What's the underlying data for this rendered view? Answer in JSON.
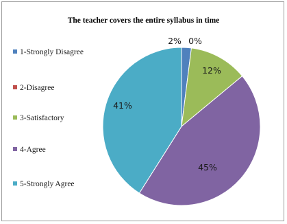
{
  "chart_data": {
    "type": "pie",
    "title": "The teacher covers the entire syllabus  in time",
    "legend_position": "left",
    "categories": [
      "1-Strongly Disagree",
      "2-Disagree",
      "3-Satisfactory",
      "4-Agree",
      "5-Strongly Agree"
    ],
    "values": [
      2,
      0,
      12,
      45,
      41
    ],
    "data_labels": [
      "2%",
      "0%",
      "12%",
      "45%",
      "41%"
    ],
    "colors": [
      "#4f81bd",
      "#c0504d",
      "#9bbb59",
      "#8064a2",
      "#4bacc6"
    ]
  },
  "legend": [
    {
      "label": "1-Strongly Disagree",
      "color": "#4f81bd"
    },
    {
      "label": "2-Disagree",
      "color": "#c0504d"
    },
    {
      "label": "3-Satisfactory",
      "color": "#9bbb59"
    },
    {
      "label": "4-Agree",
      "color": "#8064a2"
    },
    {
      "label": "5-Strongly Agree",
      "color": "#4bacc6"
    }
  ]
}
